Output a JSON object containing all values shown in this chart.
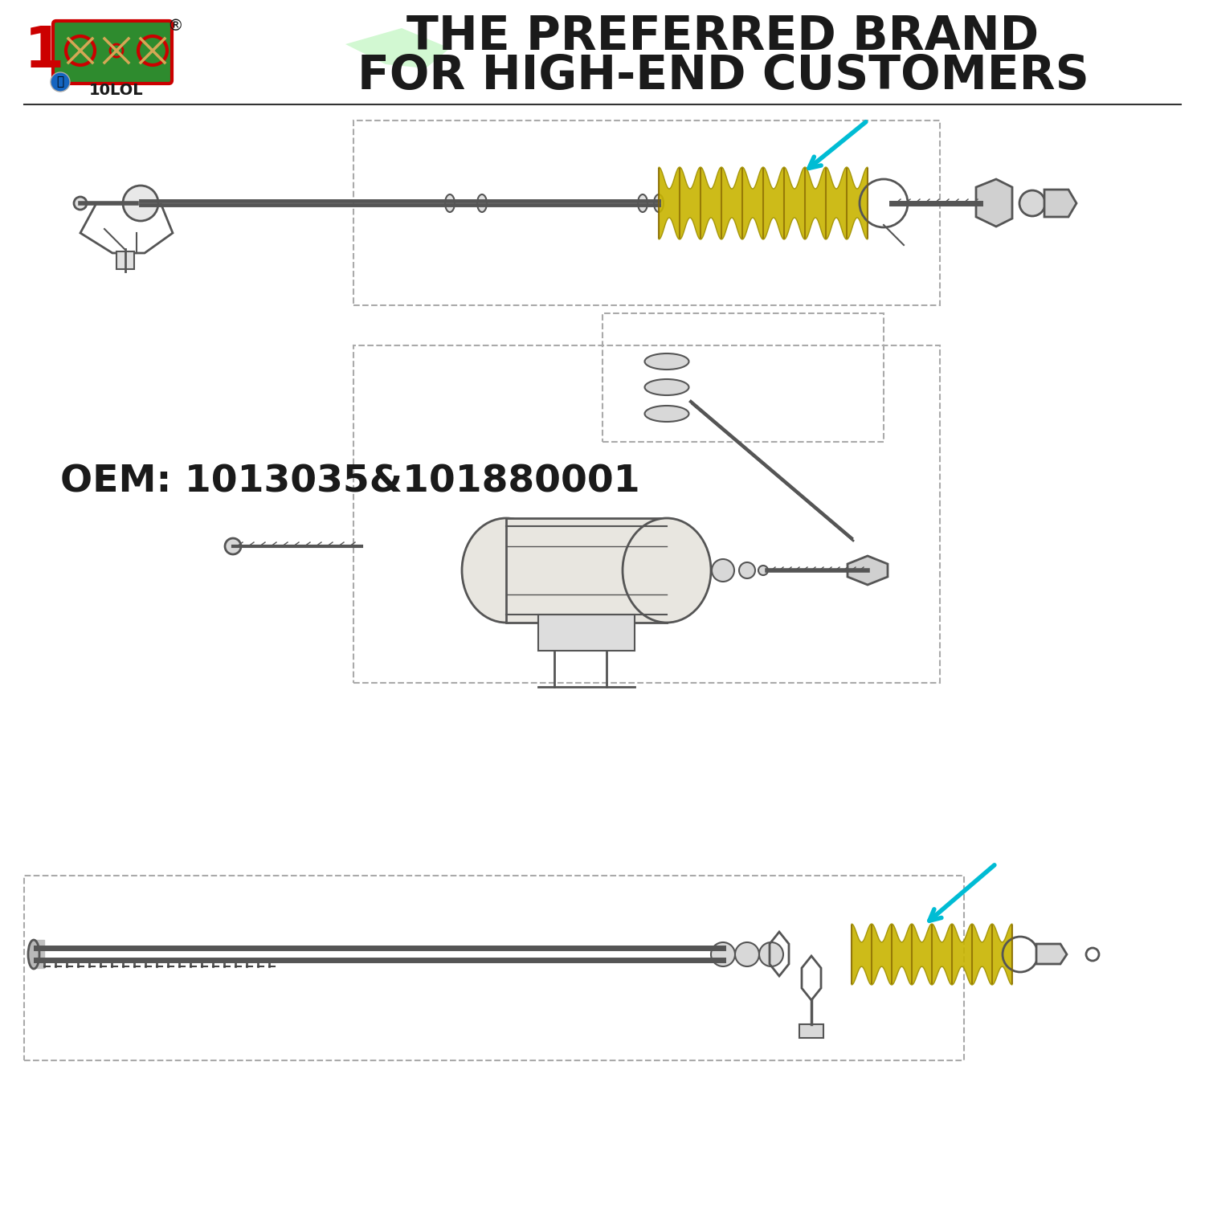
{
  "bg_color": "#ffffff",
  "title_line1": "THE PREFERRED BRAND",
  "title_line2": "FOR HIGH-END CUSTOMERS",
  "oem_text": "OEM: 1013035&101880001",
  "title_color": "#1a1a1a",
  "oem_color": "#1a1a1a",
  "logo_text": "10LOL",
  "arrow_color": "#00bcd4",
  "spring_color": "#c8b400",
  "spring_color2": "#d4c200",
  "line_color": "#555555",
  "part_line_color": "#888888",
  "rect_border": "#aaaaaa"
}
